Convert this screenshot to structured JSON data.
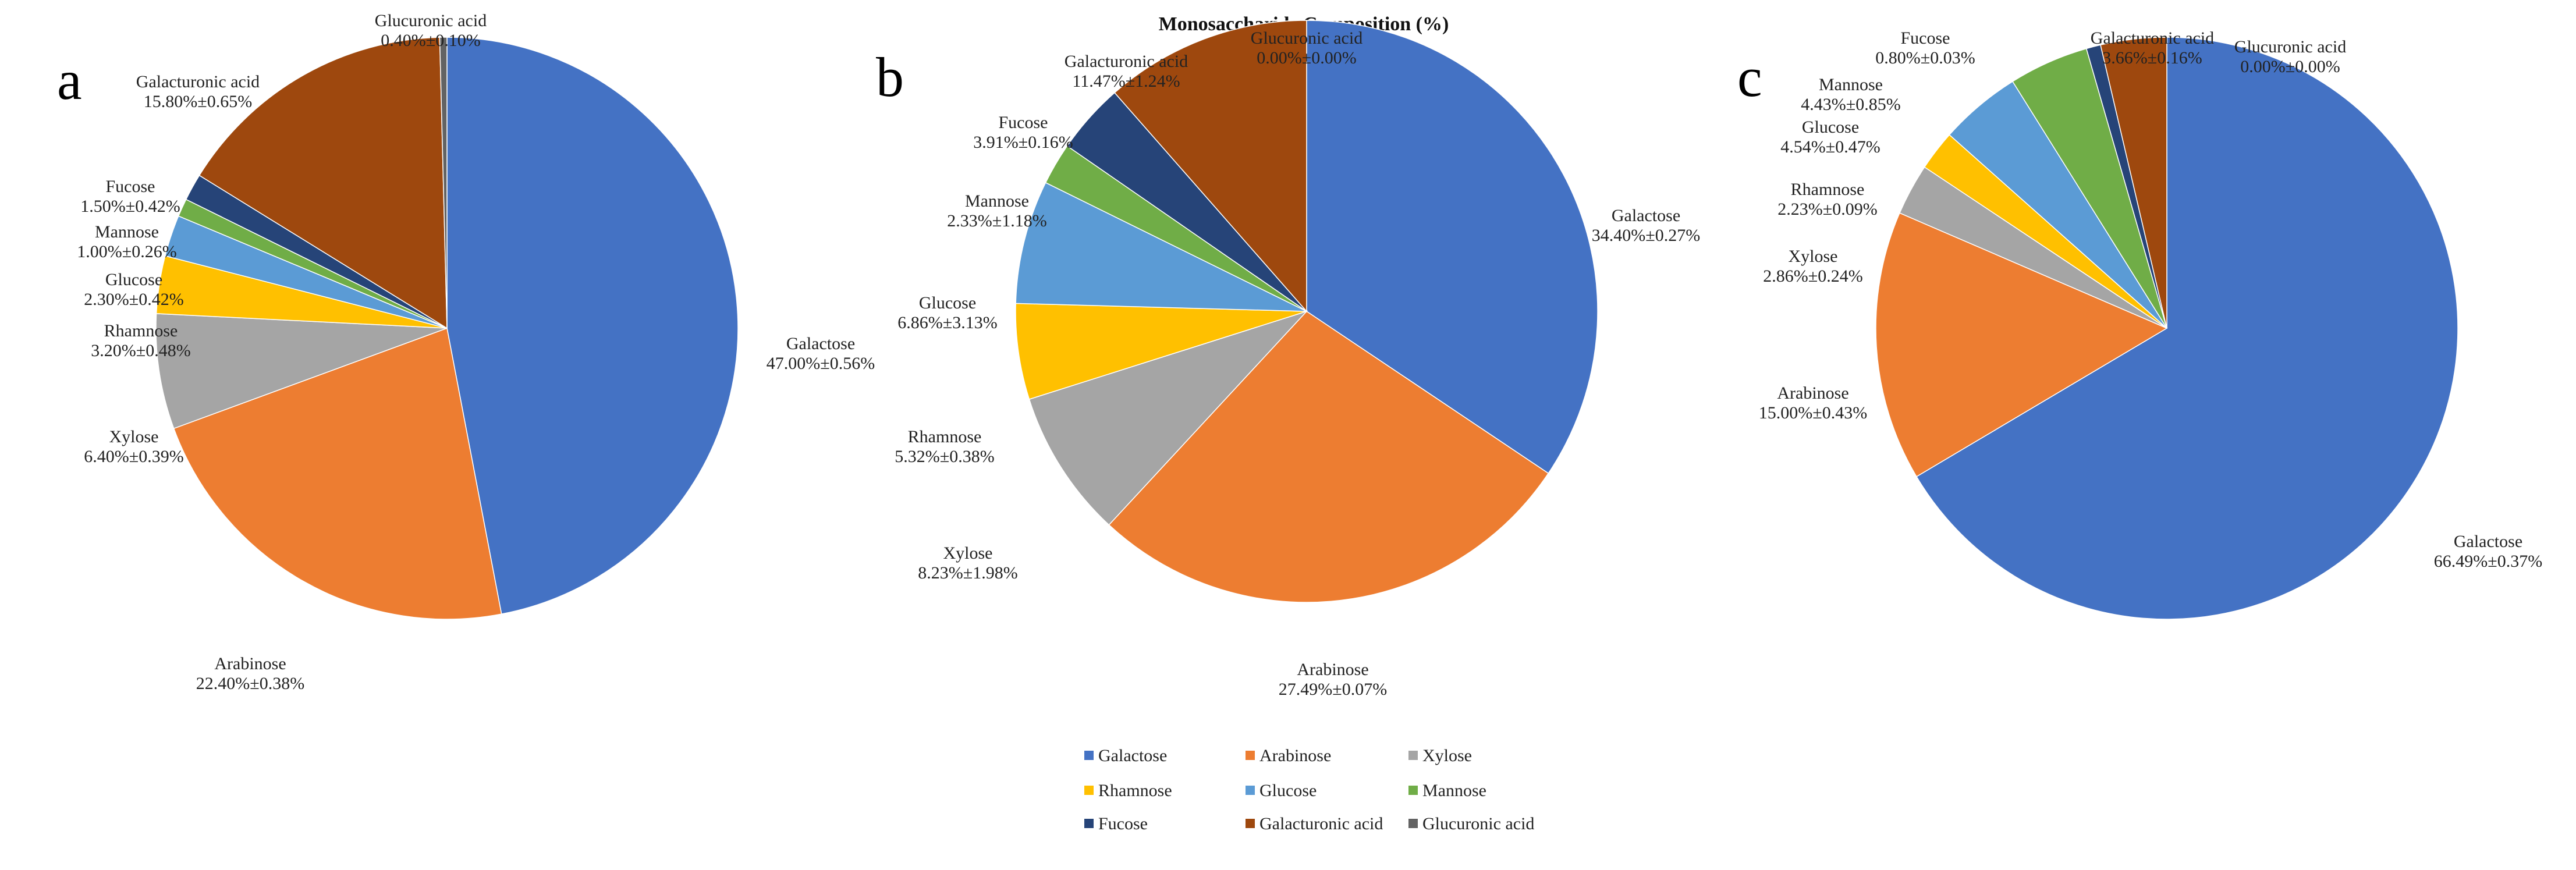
{
  "title": "Monosaccharide Composition (%)",
  "colors": {
    "Galactose": "#4472C4",
    "Arabinose": "#ED7D31",
    "Xylose": "#A5A5A5",
    "Rhamnose": "#FFC000",
    "Glucose": "#5B9BD5",
    "Mannose": "#70AD47",
    "Fucose": "#264478",
    "Galacturonic acid": "#9E480E",
    "Glucuronic acid": "#636363"
  },
  "legend": [
    "Galactose",
    "Arabinose",
    "Xylose",
    "Rhamnose",
    "Glucose",
    "Mannose",
    "Fucose",
    "Galacturonic acid",
    "Glucuronic acid"
  ],
  "chart_data": [
    {
      "type": "pie",
      "panel": "a",
      "title": "",
      "slices": [
        {
          "name": "Galactose",
          "value": 47.0,
          "label": "47.00%±0.56%"
        },
        {
          "name": "Arabinose",
          "value": 22.4,
          "label": "22.40%±0.38%"
        },
        {
          "name": "Xylose",
          "value": 6.4,
          "label": "6.40%±0.39%"
        },
        {
          "name": "Rhamnose",
          "value": 3.2,
          "label": "3.20%±0.48%"
        },
        {
          "name": "Glucose",
          "value": 2.3,
          "label": "2.30%±0.42%"
        },
        {
          "name": "Mannose",
          "value": 1.0,
          "label": "1.00%±0.26%"
        },
        {
          "name": "Fucose",
          "value": 1.5,
          "label": "1.50%±0.42%"
        },
        {
          "name": "Galacturonic acid",
          "value": 15.8,
          "label": "15.80%±0.65%"
        },
        {
          "name": "Glucuronic acid",
          "value": 0.4,
          "label": "0.40%±0.10%"
        }
      ]
    },
    {
      "type": "pie",
      "panel": "b",
      "title": "Monosaccharide Composition (%)",
      "slices": [
        {
          "name": "Galactose",
          "value": 34.4,
          "label": "34.40%±0.27%"
        },
        {
          "name": "Arabinose",
          "value": 27.49,
          "label": "27.49%±0.07%"
        },
        {
          "name": "Xylose",
          "value": 8.23,
          "label": "8.23%±1.98%"
        },
        {
          "name": "Rhamnose",
          "value": 5.32,
          "label": "5.32%±0.38%"
        },
        {
          "name": "Glucose",
          "value": 6.86,
          "label": "6.86%±3.13%"
        },
        {
          "name": "Mannose",
          "value": 2.33,
          "label": "2.33%±1.18%"
        },
        {
          "name": "Fucose",
          "value": 3.91,
          "label": "3.91%±0.16%"
        },
        {
          "name": "Galacturonic acid",
          "value": 11.47,
          "label": "11.47%±1.24%"
        },
        {
          "name": "Glucuronic acid",
          "value": 0.0,
          "label": "0.00%±0.00%"
        }
      ]
    },
    {
      "type": "pie",
      "panel": "c",
      "title": "",
      "slices": [
        {
          "name": "Galactose",
          "value": 66.49,
          "label": "66.49%±0.37%"
        },
        {
          "name": "Arabinose",
          "value": 15.0,
          "label": "15.00%±0.43%"
        },
        {
          "name": "Xylose",
          "value": 2.86,
          "label": "2.86%±0.24%"
        },
        {
          "name": "Rhamnose",
          "value": 2.23,
          "label": "2.23%±0.09%"
        },
        {
          "name": "Glucose",
          "value": 4.54,
          "label": "4.54%±0.47%"
        },
        {
          "name": "Mannose",
          "value": 4.43,
          "label": "4.43%±0.85%"
        },
        {
          "name": "Fucose",
          "value": 0.8,
          "label": "0.80%±0.03%"
        },
        {
          "name": "Galacturonic acid",
          "value": 3.66,
          "label": "3.66%±0.16%"
        },
        {
          "name": "Glucuronic acid",
          "value": 0.0,
          "label": "0.00%±0.00%"
        }
      ]
    }
  ]
}
